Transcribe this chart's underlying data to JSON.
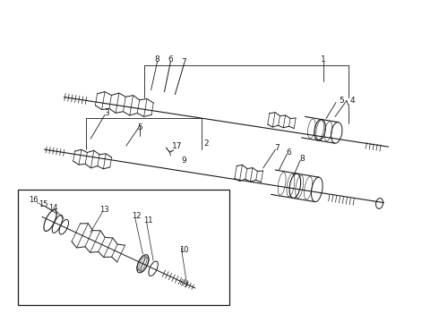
{
  "bg_color": "#ffffff",
  "line_color": "#1a1a1a",
  "fig_width": 4.9,
  "fig_height": 3.6,
  "dpi": 100,
  "labels": {
    "row1_bracket": "1",
    "row1_left_8": "8",
    "row1_left_6": "6",
    "row1_left_7": "7",
    "row1_right_4": "4",
    "row1_right_5": "5",
    "row2_bracket": "2",
    "row2_left_3": "3",
    "row2_left_5": "5",
    "row2_right_7": "7",
    "row2_right_6": "6",
    "row2_right_8": "8",
    "item_17": "17",
    "item_9": "9",
    "inset_16": "16",
    "inset_15": "15",
    "inset_14": "14",
    "inset_13": "13",
    "inset_12": "12",
    "inset_11": "11",
    "inset_10": "10"
  }
}
